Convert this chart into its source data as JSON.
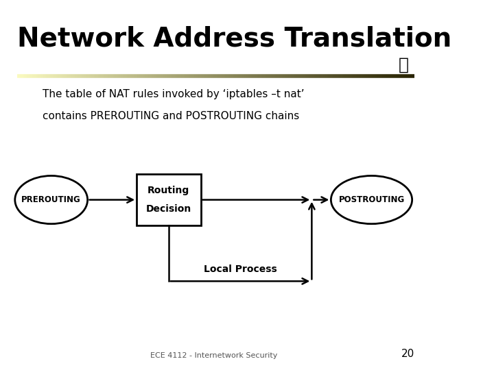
{
  "title": "Network Address Translation",
  "subtitle_line1": "The table of NAT rules invoked by ‘iptables –t nat’",
  "subtitle_line2": "contains PREROUTING and POSTROUTING chains",
  "bg_color": "#ffffff",
  "title_color": "#000000",
  "body_color": "#000000",
  "footer_text": "ECE 4112 - Internetwork Security",
  "page_number": "20",
  "prerouting_label": "PREROUTING",
  "postrouting_label": "POSTROUTING",
  "box_label_line1": "Routing",
  "box_label_line2": "Decision",
  "local_process_label": "Local Process"
}
